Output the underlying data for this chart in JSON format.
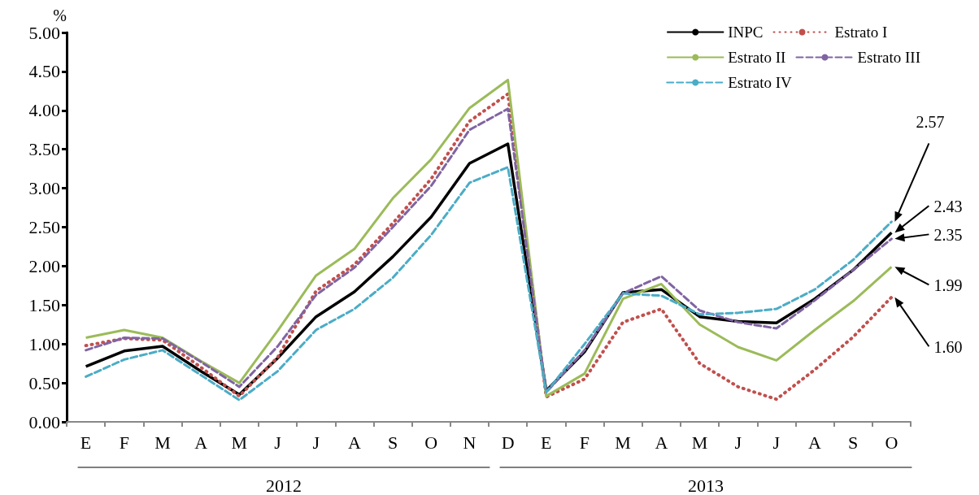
{
  "chart_data": {
    "type": "line",
    "ylabel": "%",
    "categories": [
      "E",
      "F",
      "M",
      "A",
      "M",
      "J",
      "J",
      "A",
      "S",
      "O",
      "N",
      "D",
      "E",
      "F",
      "M",
      "A",
      "M",
      "J",
      "J",
      "A",
      "S",
      "O"
    ],
    "series": [
      {
        "name": "INPC",
        "color": "#000000",
        "line_style": "solid",
        "values": [
          0.71,
          0.91,
          0.97,
          0.65,
          0.35,
          0.82,
          1.35,
          1.67,
          2.12,
          2.63,
          3.32,
          3.57,
          0.4,
          0.9,
          1.66,
          1.7,
          1.35,
          1.29,
          1.27,
          1.58,
          1.95,
          2.43
        ]
      },
      {
        "name": "Estrato I",
        "color": "#c0504d",
        "line_style": "dotted",
        "values": [
          0.98,
          1.07,
          1.05,
          0.7,
          0.33,
          0.83,
          1.68,
          2.02,
          2.55,
          3.12,
          3.86,
          4.21,
          0.32,
          0.55,
          1.28,
          1.45,
          0.75,
          0.45,
          0.29,
          0.67,
          1.09,
          1.6
        ]
      },
      {
        "name": "Estrato II",
        "color": "#9bbb59",
        "line_style": "solid",
        "values": [
          1.08,
          1.18,
          1.08,
          0.78,
          0.5,
          1.17,
          1.88,
          2.22,
          2.87,
          3.37,
          4.03,
          4.39,
          0.33,
          0.62,
          1.58,
          1.77,
          1.25,
          0.96,
          0.79,
          1.18,
          1.55,
          1.99
        ]
      },
      {
        "name": "Estrato III",
        "color": "#8064a2",
        "line_style": "dashed",
        "values": [
          0.92,
          1.08,
          1.07,
          0.77,
          0.45,
          0.97,
          1.63,
          1.98,
          2.5,
          3.03,
          3.75,
          4.02,
          0.38,
          0.92,
          1.65,
          1.87,
          1.43,
          1.28,
          1.2,
          1.56,
          1.95,
          2.35
        ]
      },
      {
        "name": "Estrato IV",
        "color": "#4bacc6",
        "line_style": "dashed",
        "values": [
          0.58,
          0.8,
          0.92,
          0.6,
          0.28,
          0.65,
          1.18,
          1.45,
          1.85,
          2.4,
          3.07,
          3.27,
          0.38,
          1.0,
          1.65,
          1.62,
          1.38,
          1.4,
          1.45,
          1.7,
          2.08,
          2.57
        ]
      }
    ],
    "ylim": [
      0,
      5
    ],
    "yticks": [
      {
        "value": 0,
        "label": "0.00"
      },
      {
        "value": 0.5,
        "label": "0.50"
      },
      {
        "value": 1,
        "label": "1.00"
      },
      {
        "value": 1.5,
        "label": "1.50"
      },
      {
        "value": 2,
        "label": "2.00"
      },
      {
        "value": 2.5,
        "label": "2.50"
      },
      {
        "value": 3,
        "label": "3.00"
      },
      {
        "value": 3.5,
        "label": "3.50"
      },
      {
        "value": 4,
        "label": "4.00"
      },
      {
        "value": 4.5,
        "label": "4.50"
      },
      {
        "value": 5,
        "label": "5.00"
      }
    ],
    "annotations": [
      "2012",
      "2013",
      "2.57",
      "2.43",
      "2.35",
      "1.99",
      "1.60"
    ],
    "legend": "top right",
    "grid": false,
    "marker": "none"
  }
}
